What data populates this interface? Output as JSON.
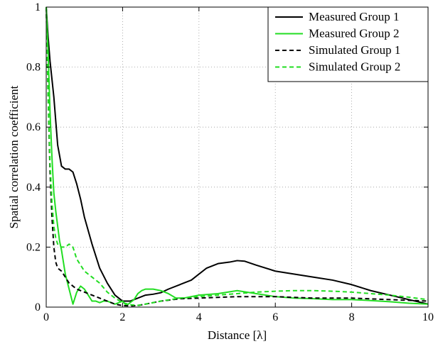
{
  "chart_data": {
    "type": "line",
    "xlabel": "Distance [λ]",
    "ylabel": "Spatial correlation coefficient",
    "xlim": [
      0,
      10
    ],
    "ylim": [
      0,
      1
    ],
    "x_ticks": [
      "0",
      "2",
      "4",
      "6",
      "8",
      "10"
    ],
    "y_ticks": [
      "0",
      "0.2",
      "0.4",
      "0.6",
      "0.8",
      "1"
    ],
    "grid": "dotted",
    "legend_position": "top-right",
    "colors": {
      "black": "#000000",
      "green": "#22dd22"
    },
    "series": [
      {
        "name": "Measured Group 1",
        "color": "#000000",
        "dash": "solid",
        "x": [
          0,
          0.05,
          0.1,
          0.2,
          0.3,
          0.4,
          0.5,
          0.6,
          0.7,
          0.8,
          0.9,
          1.0,
          1.2,
          1.4,
          1.6,
          1.8,
          2.0,
          2.2,
          2.4,
          2.6,
          2.8,
          3.0,
          3.2,
          3.5,
          3.8,
          4.0,
          4.2,
          4.5,
          4.8,
          5.0,
          5.2,
          5.5,
          6.0,
          6.5,
          7.0,
          7.5,
          8.0,
          8.5,
          9.0,
          9.5,
          10.0
        ],
        "y": [
          1.0,
          0.9,
          0.82,
          0.7,
          0.54,
          0.47,
          0.46,
          0.46,
          0.45,
          0.41,
          0.36,
          0.3,
          0.21,
          0.13,
          0.08,
          0.04,
          0.02,
          0.02,
          0.03,
          0.04,
          0.043,
          0.048,
          0.06,
          0.075,
          0.09,
          0.11,
          0.13,
          0.145,
          0.15,
          0.155,
          0.153,
          0.14,
          0.12,
          0.11,
          0.1,
          0.09,
          0.075,
          0.055,
          0.04,
          0.025,
          0.01
        ]
      },
      {
        "name": "Measured Group 2",
        "color": "#22dd22",
        "dash": "solid",
        "x": [
          0,
          0.05,
          0.1,
          0.15,
          0.2,
          0.25,
          0.3,
          0.35,
          0.4,
          0.5,
          0.6,
          0.7,
          0.8,
          0.9,
          1.0,
          1.1,
          1.2,
          1.3,
          1.4,
          1.5,
          1.6,
          1.8,
          1.9,
          2.0,
          2.1,
          2.2,
          2.3,
          2.4,
          2.5,
          2.6,
          2.8,
          3.0,
          3.2,
          3.4,
          3.6,
          3.8,
          4.0,
          4.5,
          5.0,
          5.5,
          6.0,
          6.5,
          7.0,
          7.5,
          8.0,
          8.5,
          9.0,
          9.5,
          10.0
        ],
        "y": [
          1.0,
          0.85,
          0.65,
          0.5,
          0.38,
          0.32,
          0.27,
          0.22,
          0.19,
          0.11,
          0.06,
          0.01,
          0.05,
          0.07,
          0.06,
          0.04,
          0.02,
          0.02,
          0.015,
          0.02,
          0.02,
          0.01,
          0.015,
          0.02,
          0.005,
          0.015,
          0.025,
          0.045,
          0.055,
          0.06,
          0.06,
          0.055,
          0.045,
          0.03,
          0.03,
          0.035,
          0.04,
          0.045,
          0.055,
          0.045,
          0.035,
          0.03,
          0.028,
          0.025,
          0.025,
          0.022,
          0.018,
          0.013,
          0.01
        ]
      },
      {
        "name": "Simulated Group 1",
        "color": "#000000",
        "dash": "dashed",
        "x": [
          0,
          0.05,
          0.1,
          0.15,
          0.2,
          0.25,
          0.3,
          0.4,
          0.5,
          0.6,
          0.8,
          1.0,
          1.2,
          1.4,
          1.6,
          1.8,
          2.0,
          2.2,
          2.4,
          2.6,
          3.0,
          3.5,
          4.0,
          5.0,
          6.0,
          7.0,
          8.0,
          9.0,
          10.0
        ],
        "y": [
          1.0,
          0.7,
          0.45,
          0.3,
          0.2,
          0.15,
          0.13,
          0.12,
          0.1,
          0.08,
          0.06,
          0.05,
          0.04,
          0.03,
          0.02,
          0.01,
          0.005,
          0.004,
          0.005,
          0.01,
          0.02,
          0.028,
          0.03,
          0.035,
          0.035,
          0.03,
          0.03,
          0.025,
          0.02
        ]
      },
      {
        "name": "Simulated Group 2",
        "color": "#22dd22",
        "dash": "dashed",
        "x": [
          0,
          0.05,
          0.1,
          0.15,
          0.2,
          0.25,
          0.3,
          0.4,
          0.5,
          0.6,
          0.7,
          0.8,
          0.9,
          1.0,
          1.2,
          1.4,
          1.6,
          1.8,
          2.0,
          2.2,
          2.4,
          2.6,
          3.0,
          3.5,
          4.0,
          4.5,
          5.0,
          5.5,
          6.0,
          6.5,
          7.0,
          7.5,
          8.0,
          8.5,
          9.0,
          9.5,
          10.0
        ],
        "y": [
          1.0,
          0.7,
          0.48,
          0.35,
          0.27,
          0.23,
          0.21,
          0.2,
          0.2,
          0.21,
          0.2,
          0.16,
          0.14,
          0.12,
          0.1,
          0.08,
          0.05,
          0.03,
          0.015,
          0.008,
          0.006,
          0.01,
          0.02,
          0.03,
          0.035,
          0.04,
          0.045,
          0.05,
          0.053,
          0.055,
          0.055,
          0.053,
          0.05,
          0.045,
          0.04,
          0.033,
          0.025
        ]
      }
    ]
  }
}
